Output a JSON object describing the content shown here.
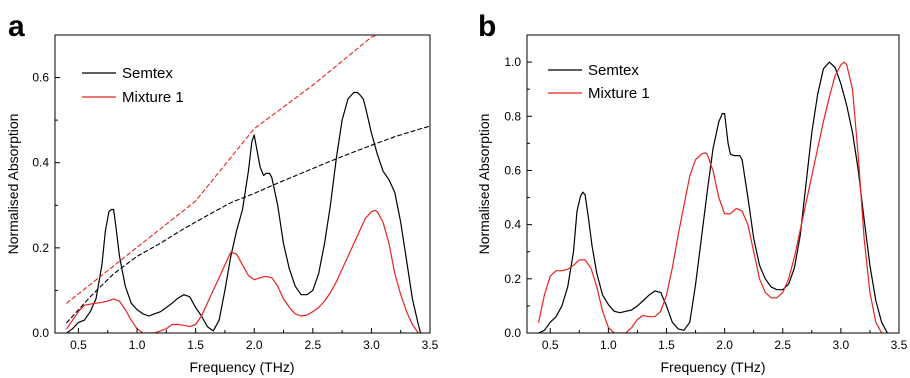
{
  "chart_data": [
    {
      "panel": "a",
      "type": "line",
      "xlabel": "Frequency (THz)",
      "ylabel": "Normalised Absorption",
      "xlim": [
        0.3,
        3.5
      ],
      "ylim": [
        0,
        0.7
      ],
      "xticks": [
        0.5,
        1.0,
        1.5,
        2.0,
        2.5,
        3.0,
        3.5
      ],
      "yticks": [
        0.0,
        0.2,
        0.4,
        0.6
      ],
      "ytick_decimals": 1,
      "legend": "top-left",
      "series": [
        {
          "name": "Semtex",
          "color": "#000000",
          "x": [
            0.4,
            0.45,
            0.5,
            0.55,
            0.6,
            0.65,
            0.7,
            0.73,
            0.76,
            0.78,
            0.8,
            0.82,
            0.85,
            0.9,
            0.95,
            1.0,
            1.05,
            1.1,
            1.15,
            1.2,
            1.25,
            1.3,
            1.35,
            1.4,
            1.45,
            1.5,
            1.55,
            1.6,
            1.65,
            1.7,
            1.75,
            1.8,
            1.85,
            1.9,
            1.95,
            1.98,
            2.0,
            2.05,
            2.08,
            2.1,
            2.13,
            2.15,
            2.2,
            2.25,
            2.3,
            2.35,
            2.4,
            2.45,
            2.5,
            2.55,
            2.6,
            2.65,
            2.7,
            2.75,
            2.8,
            2.85,
            2.88,
            2.9,
            2.93,
            2.95,
            3.0,
            3.05,
            3.1,
            3.15,
            3.2,
            3.25,
            3.3,
            3.35,
            3.4,
            3.42
          ],
          "values": [
            0.0,
            0.01,
            0.025,
            0.03,
            0.05,
            0.08,
            0.16,
            0.24,
            0.285,
            0.29,
            0.29,
            0.25,
            0.18,
            0.11,
            0.07,
            0.055,
            0.045,
            0.04,
            0.045,
            0.05,
            0.06,
            0.07,
            0.082,
            0.09,
            0.085,
            0.06,
            0.04,
            0.015,
            0.005,
            0.03,
            0.1,
            0.18,
            0.24,
            0.29,
            0.38,
            0.45,
            0.465,
            0.39,
            0.37,
            0.375,
            0.375,
            0.365,
            0.3,
            0.21,
            0.15,
            0.11,
            0.09,
            0.09,
            0.1,
            0.14,
            0.21,
            0.3,
            0.41,
            0.5,
            0.55,
            0.565,
            0.565,
            0.56,
            0.55,
            0.53,
            0.47,
            0.42,
            0.38,
            0.36,
            0.33,
            0.26,
            0.17,
            0.08,
            0.02,
            0.0
          ]
        },
        {
          "name": "Mixture 1",
          "color": "#e8231f",
          "x": [
            0.4,
            0.45,
            0.5,
            0.55,
            0.6,
            0.65,
            0.7,
            0.75,
            0.8,
            0.85,
            0.9,
            0.95,
            1.0,
            1.05,
            1.1,
            1.15,
            1.2,
            1.25,
            1.3,
            1.35,
            1.4,
            1.45,
            1.5,
            1.55,
            1.6,
            1.65,
            1.7,
            1.75,
            1.8,
            1.85,
            1.9,
            1.95,
            2.0,
            2.05,
            2.1,
            2.15,
            2.2,
            2.25,
            2.3,
            2.35,
            2.4,
            2.45,
            2.5,
            2.55,
            2.6,
            2.65,
            2.7,
            2.75,
            2.8,
            2.85,
            2.9,
            2.95,
            3.0,
            3.03,
            3.05,
            3.1,
            3.15,
            3.2,
            3.25,
            3.3,
            3.35,
            3.4
          ],
          "values": [
            0.01,
            0.03,
            0.05,
            0.065,
            0.068,
            0.07,
            0.072,
            0.075,
            0.08,
            0.075,
            0.055,
            0.03,
            0.01,
            0.0,
            0.0,
            0.0,
            0.005,
            0.01,
            0.02,
            0.02,
            0.018,
            0.015,
            0.02,
            0.04,
            0.07,
            0.1,
            0.13,
            0.16,
            0.19,
            0.185,
            0.16,
            0.135,
            0.125,
            0.13,
            0.133,
            0.13,
            0.11,
            0.08,
            0.06,
            0.045,
            0.04,
            0.042,
            0.05,
            0.06,
            0.075,
            0.095,
            0.12,
            0.15,
            0.18,
            0.21,
            0.24,
            0.27,
            0.285,
            0.288,
            0.285,
            0.26,
            0.21,
            0.14,
            0.09,
            0.05,
            0.02,
            0.0
          ]
        },
        {
          "name": "",
          "color": "#000000",
          "dashed": true,
          "x": [
            0.4,
            0.6,
            0.8,
            1.0,
            1.2,
            1.4,
            1.6,
            1.8,
            2.0,
            2.2,
            2.4,
            2.6,
            2.8,
            3.0,
            3.2,
            3.4,
            3.5
          ],
          "values": [
            0.024,
            0.085,
            0.139,
            0.18,
            0.211,
            0.245,
            0.276,
            0.306,
            0.328,
            0.352,
            0.375,
            0.398,
            0.42,
            0.441,
            0.461,
            0.478,
            0.486
          ]
        },
        {
          "name": "",
          "color": "#e8231f",
          "dashed": true,
          "x": [
            0.4,
            1.0,
            1.5,
            2.0,
            2.5,
            3.0,
            3.05
          ],
          "values": [
            0.07,
            0.201,
            0.31,
            0.48,
            0.582,
            0.695,
            0.7
          ]
        }
      ]
    },
    {
      "panel": "b",
      "type": "line",
      "xlabel": "Frequency (THz)",
      "ylabel": "Normalised Absorption",
      "xlim": [
        0.3,
        3.5
      ],
      "ylim": [
        0,
        1.1
      ],
      "xticks": [
        0.5,
        1.0,
        1.5,
        2.0,
        2.5,
        3.0,
        3.5
      ],
      "yticks": [
        0.0,
        0.2,
        0.4,
        0.6,
        0.8,
        1.0
      ],
      "ytick_decimals": 1,
      "legend": "top-left",
      "series": [
        {
          "name": "Semtex",
          "color": "#000000",
          "x": [
            0.4,
            0.45,
            0.5,
            0.55,
            0.6,
            0.65,
            0.7,
            0.73,
            0.76,
            0.78,
            0.8,
            0.83,
            0.86,
            0.9,
            0.95,
            1.0,
            1.05,
            1.1,
            1.15,
            1.2,
            1.25,
            1.3,
            1.35,
            1.4,
            1.45,
            1.5,
            1.55,
            1.6,
            1.65,
            1.7,
            1.75,
            1.8,
            1.85,
            1.9,
            1.95,
            1.98,
            2.0,
            2.03,
            2.05,
            2.08,
            2.1,
            2.13,
            2.15,
            2.2,
            2.25,
            2.3,
            2.35,
            2.4,
            2.45,
            2.5,
            2.55,
            2.6,
            2.65,
            2.7,
            2.75,
            2.8,
            2.85,
            2.9,
            2.95,
            3.0,
            3.05,
            3.1,
            3.15,
            3.2,
            3.25,
            3.3,
            3.35,
            3.4
          ],
          "values": [
            0.0,
            0.01,
            0.04,
            0.06,
            0.1,
            0.17,
            0.3,
            0.45,
            0.505,
            0.52,
            0.51,
            0.42,
            0.32,
            0.22,
            0.14,
            0.105,
            0.08,
            0.075,
            0.08,
            0.085,
            0.1,
            0.12,
            0.14,
            0.155,
            0.15,
            0.1,
            0.04,
            0.015,
            0.01,
            0.04,
            0.18,
            0.35,
            0.52,
            0.68,
            0.78,
            0.81,
            0.81,
            0.7,
            0.66,
            0.655,
            0.655,
            0.655,
            0.64,
            0.5,
            0.35,
            0.25,
            0.2,
            0.17,
            0.16,
            0.16,
            0.18,
            0.24,
            0.36,
            0.55,
            0.74,
            0.88,
            0.975,
            1.0,
            0.98,
            0.92,
            0.84,
            0.74,
            0.6,
            0.42,
            0.25,
            0.12,
            0.04,
            0.0
          ]
        },
        {
          "name": "Mixture 1",
          "color": "#e8231f",
          "x": [
            0.4,
            0.45,
            0.5,
            0.55,
            0.6,
            0.65,
            0.7,
            0.75,
            0.8,
            0.85,
            0.9,
            0.95,
            1.0,
            1.05,
            1.1,
            1.15,
            1.2,
            1.25,
            1.3,
            1.35,
            1.4,
            1.45,
            1.5,
            1.55,
            1.6,
            1.65,
            1.7,
            1.75,
            1.8,
            1.83,
            1.85,
            1.9,
            1.95,
            2.0,
            2.05,
            2.1,
            2.15,
            2.2,
            2.25,
            2.3,
            2.35,
            2.4,
            2.45,
            2.5,
            2.55,
            2.6,
            2.65,
            2.7,
            2.75,
            2.8,
            2.85,
            2.9,
            2.95,
            3.0,
            3.03,
            3.05,
            3.1,
            3.15,
            3.2,
            3.25,
            3.3,
            3.35
          ],
          "values": [
            0.04,
            0.14,
            0.21,
            0.23,
            0.23,
            0.235,
            0.25,
            0.27,
            0.27,
            0.24,
            0.17,
            0.08,
            0.02,
            0.0,
            0.0,
            0.0,
            0.02,
            0.05,
            0.065,
            0.06,
            0.06,
            0.08,
            0.14,
            0.24,
            0.36,
            0.47,
            0.58,
            0.64,
            0.66,
            0.665,
            0.66,
            0.6,
            0.5,
            0.44,
            0.44,
            0.46,
            0.45,
            0.4,
            0.3,
            0.2,
            0.15,
            0.13,
            0.13,
            0.15,
            0.2,
            0.28,
            0.38,
            0.48,
            0.58,
            0.68,
            0.78,
            0.87,
            0.95,
            0.99,
            1.0,
            0.99,
            0.9,
            0.65,
            0.35,
            0.15,
            0.04,
            0.0
          ]
        }
      ]
    }
  ],
  "panels": {
    "a": {
      "label": "a",
      "xlabel": "Frequency (THz)",
      "ylabel": "Normalised Absorption",
      "legend": {
        "semtex": "Semtex",
        "mixture": "Mixture 1"
      }
    },
    "b": {
      "label": "b",
      "xlabel": "Frequency (THz)",
      "ylabel": "Normalised Absorption",
      "legend": {
        "semtex": "Semtex",
        "mixture": "Mixture 1"
      }
    }
  }
}
